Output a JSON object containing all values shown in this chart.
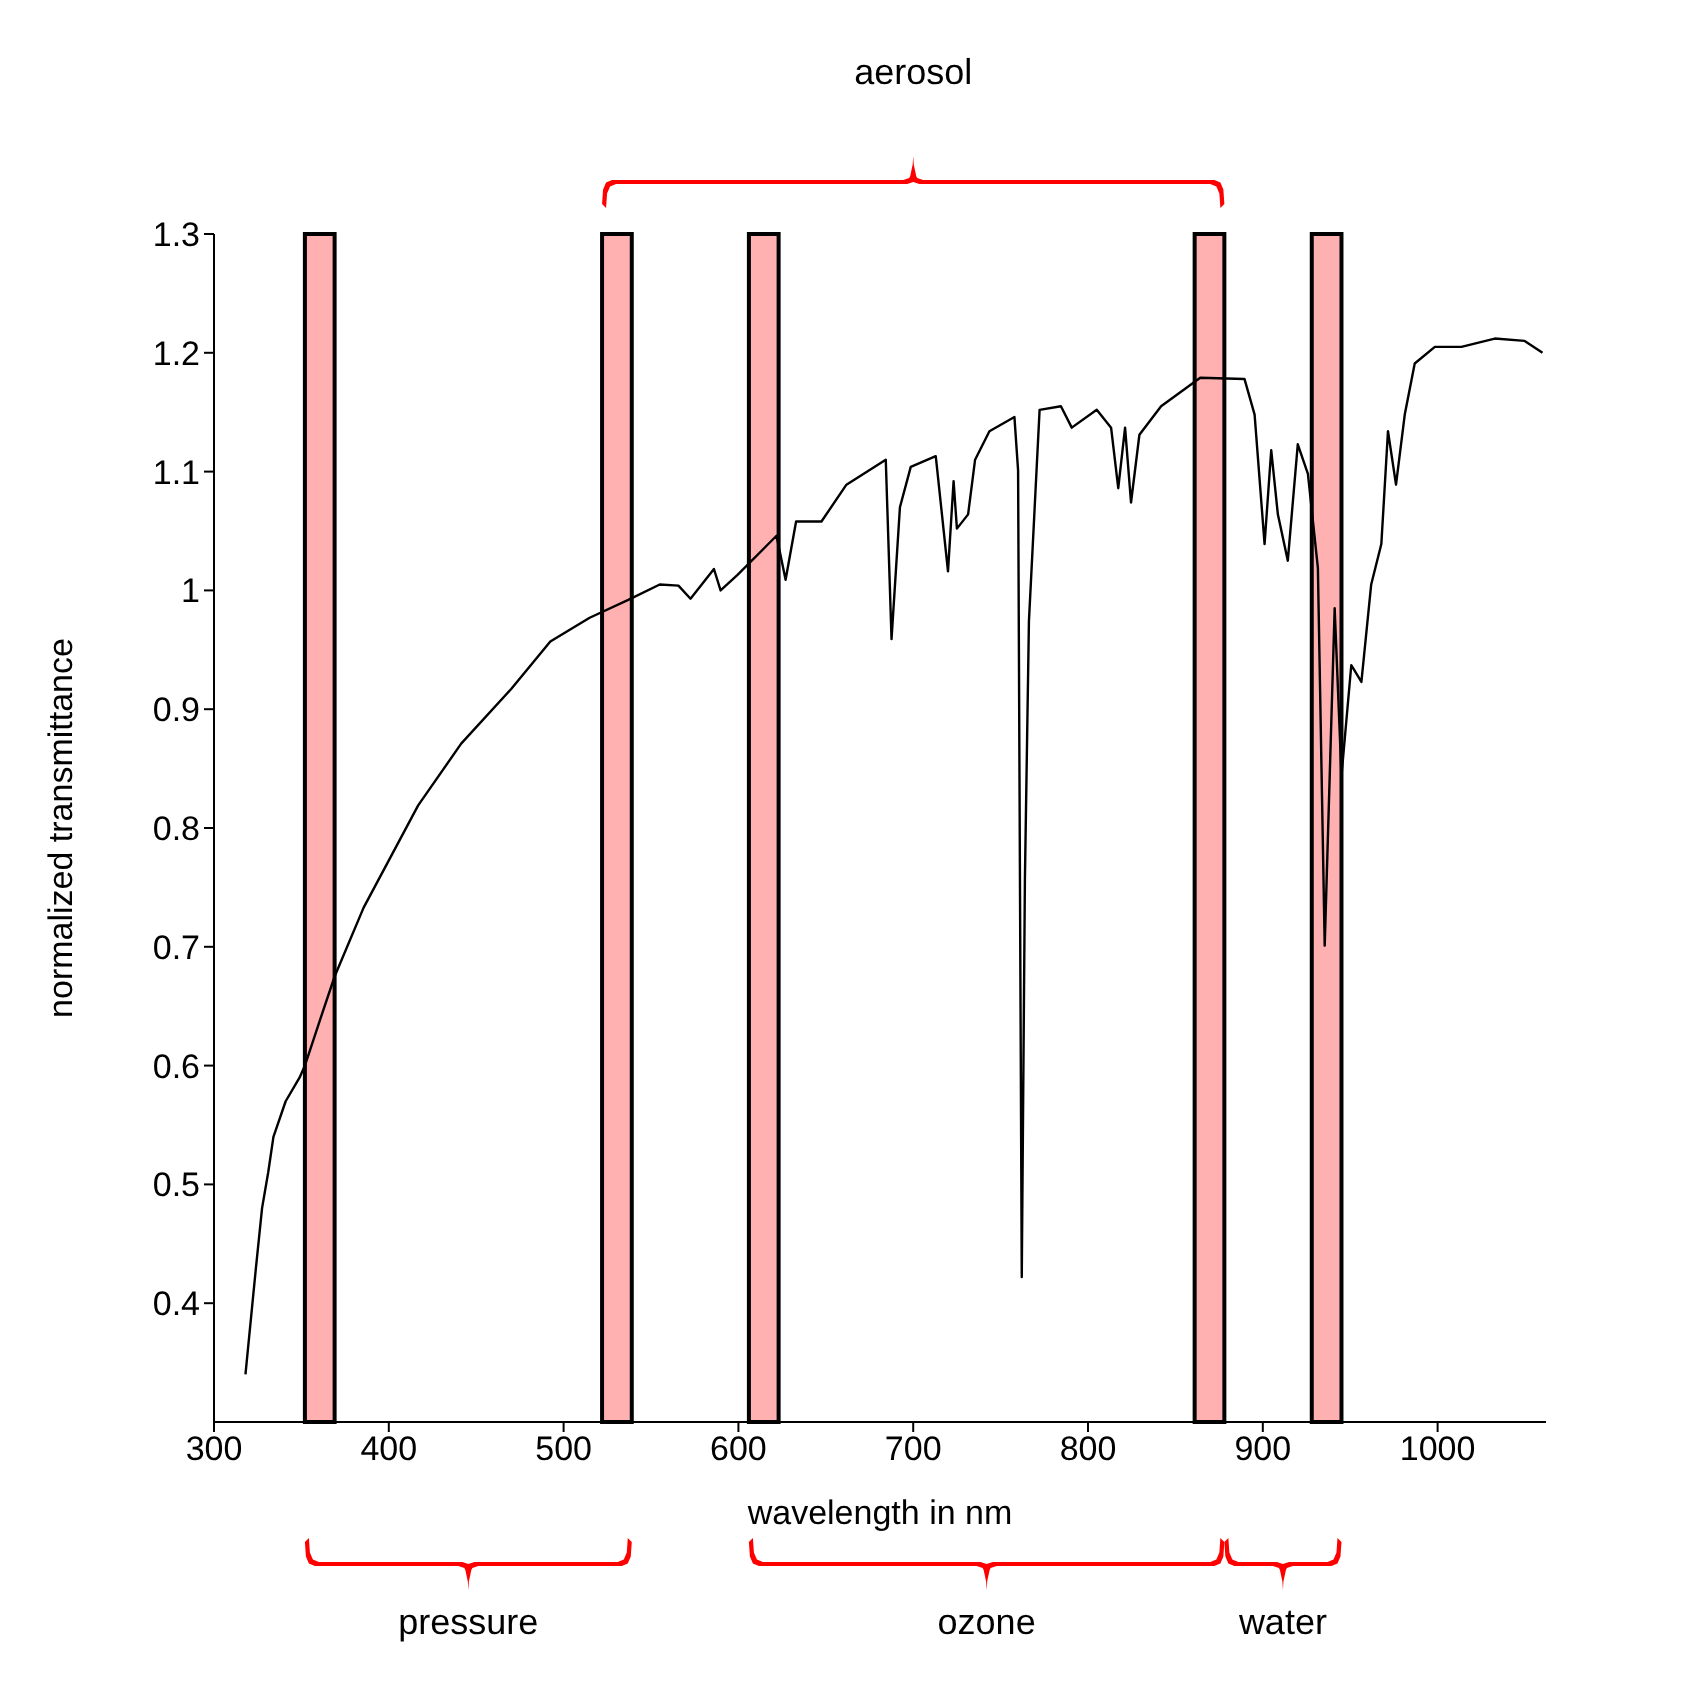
{
  "chart_data": {
    "type": "line",
    "xlabel": "wavelength in nm",
    "ylabel": "normalized transmittance",
    "annotations": [
      "aerosol",
      "pressure",
      "ozone",
      "water"
    ],
    "x": [
      318,
      322,
      324,
      327.5,
      331,
      334,
      341,
      349,
      352,
      361,
      369,
      385.6,
      416.8,
      441.4,
      470,
      492.4,
      514.9,
      537,
      555,
      565.7,
      572.6,
      586,
      589.8,
      599.5,
      621.8,
      627,
      633,
      647.5,
      661.8,
      684.3,
      687.6,
      692.4,
      698.6,
      712.9,
      719.9,
      723.1,
      725,
      731.4,
      735.4,
      743.6,
      757.9,
      760,
      762.1,
      763.9,
      766.2,
      772.3,
      784.5,
      790.7,
      805,
      813.2,
      817.3,
      821.2,
      824.6,
      829.4,
      841.8,
      864.2,
      889.5,
      895.3,
      901,
      904.8,
      908.6,
      914.3,
      920,
      925.8,
      931.5,
      935.4,
      941.1,
      945,
      950.6,
      956.4,
      962,
      967.8,
      971.6,
      976.2,
      981.2,
      986.9,
      998.4,
      1013.6,
      1032.7,
      1049.8,
      1060
    ],
    "series": [
      {
        "color": "#000000",
        "values": [
          0.34,
          0.4,
          0.43,
          0.48,
          0.51,
          0.54,
          0.57,
          0.59,
          0.6,
          0.64,
          0.675,
          0.733,
          0.819,
          0.871,
          0.917,
          0.957,
          0.977,
          0.992,
          1.005,
          1.004,
          0.993,
          1.018,
          1.0,
          1.013,
          1.046,
          1.009,
          1.058,
          1.058,
          1.089,
          1.11,
          0.959,
          1.07,
          1.104,
          1.113,
          1.016,
          1.092,
          1.052,
          1.064,
          1.11,
          1.134,
          1.146,
          1.101,
          0.422,
          0.757,
          0.974,
          1.152,
          1.155,
          1.137,
          1.152,
          1.137,
          1.086,
          1.137,
          1.074,
          1.131,
          1.155,
          1.179,
          1.178,
          1.148,
          1.039,
          1.118,
          1.064,
          1.025,
          1.123,
          1.098,
          1.019,
          0.701,
          0.985,
          0.844,
          0.937,
          0.923,
          1.005,
          1.039,
          1.134,
          1.089,
          1.148,
          1.191,
          1.205,
          1.205,
          1.212,
          1.21,
          1.2
        ]
      }
    ],
    "xlim": [
      300,
      1062
    ],
    "xticks": [
      300,
      400,
      500,
      600,
      700,
      800,
      900,
      1000
    ],
    "ylim": [
      0.3,
      1.3
    ],
    "yticks": [
      0.4,
      0.5,
      0.6,
      0.7,
      0.8,
      0.9,
      1,
      1.1,
      1.2,
      1.3
    ],
    "bands": [
      {
        "axis": "x",
        "from": 352,
        "to": 369,
        "color": "#ffa8a8"
      },
      {
        "axis": "x",
        "from": 522,
        "to": 539,
        "color": "#ffa8a8"
      },
      {
        "axis": "x",
        "from": 606,
        "to": 623,
        "color": "#ffa8a8"
      },
      {
        "axis": "x",
        "from": 861,
        "to": 878,
        "color": "#ffa8a8"
      },
      {
        "axis": "x",
        "from": 928,
        "to": 945,
        "color": "#ffa8a8"
      }
    ],
    "grid": false,
    "legend": false,
    "marker": "none",
    "line_style": "solid"
  }
}
